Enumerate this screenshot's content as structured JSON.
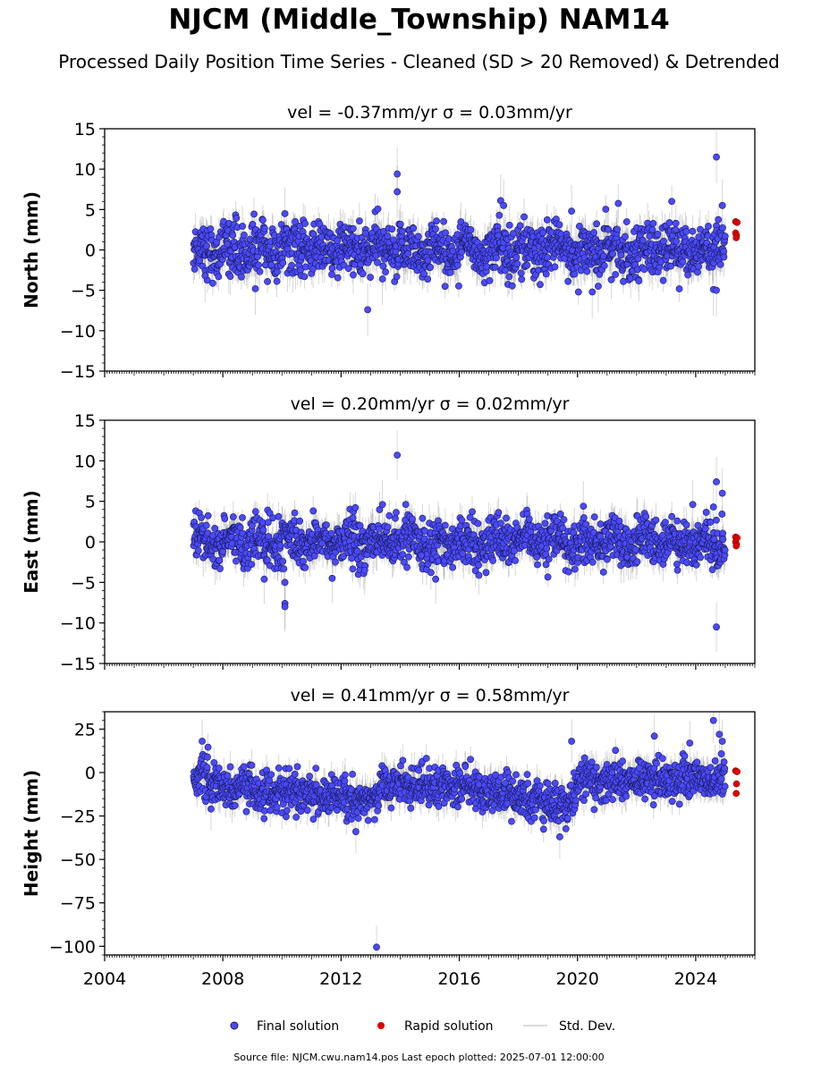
{
  "title": "NJCM (Middle_Township) NAM14",
  "subtitle": "Processed Daily Position Time Series - Cleaned (SD > 20 Removed) & Detrended",
  "footer": "Source file: NJCM.cwu.nam14.pos  Last epoch plotted: 2025-07-01 12:00:00",
  "legend": {
    "final_label": "Final solution",
    "rapid_label": "Rapid solution",
    "std_label": "Std. Dev."
  },
  "colors": {
    "final": "#4a4aff",
    "final_edge": "#1a1a55",
    "rapid": "#e00000",
    "std": "#8c8c8c"
  },
  "chart_data": [
    {
      "type": "scatter",
      "panel": "north",
      "title": "vel = -0.37mm/yr   σ = 0.03mm/yr",
      "ylabel": "North (mm)",
      "xlabel": "",
      "xlim": [
        2004,
        2026
      ],
      "ylim": [
        -15,
        15
      ],
      "yticks": [
        15,
        10,
        5,
        0,
        -5,
        -10,
        -15
      ],
      "xticks": [
        2004,
        2008,
        2012,
        2016,
        2020,
        2024
      ],
      "show_xtick_labels": false,
      "grid": false,
      "series": [
        {
          "name": "Final solution",
          "kind": "final",
          "time_span": [
            2007.0,
            2025.0
          ],
          "noise_sd": 1.6,
          "err": 1.8,
          "points": [
            [
              2012.9,
              -7.4
            ],
            [
              2013.9,
              9.4
            ],
            [
              2013.9,
              7.2
            ],
            [
              2009.1,
              -4.8
            ],
            [
              2024.7,
              11.5
            ],
            [
              2024.9,
              5.5
            ],
            [
              2024.6,
              -4.9
            ],
            [
              2024.7,
              -5.0
            ],
            [
              2017.4,
              6.1
            ],
            [
              2017.5,
              5.5
            ],
            [
              2010.1,
              4.5
            ],
            [
              2020.5,
              -5.2
            ],
            [
              2007.4,
              -3.2
            ],
            [
              2013.4,
              -3.6
            ],
            [
              2019.8,
              4.8
            ],
            [
              2020.7,
              -4.5
            ]
          ]
        },
        {
          "name": "Rapid solution",
          "kind": "rapid",
          "points": [
            [
              2025.35,
              3.5
            ],
            [
              2025.4,
              3.4
            ],
            [
              2025.35,
              2.1
            ],
            [
              2025.38,
              1.8
            ],
            [
              2025.37,
              1.5
            ]
          ]
        }
      ]
    },
    {
      "type": "scatter",
      "panel": "east",
      "title": "vel = 0.20mm/yr   σ = 0.02mm/yr",
      "ylabel": "East (mm)",
      "xlabel": "",
      "xlim": [
        2004,
        2026
      ],
      "ylim": [
        -15,
        15
      ],
      "yticks": [
        15,
        10,
        5,
        0,
        -5,
        -10,
        -15
      ],
      "xticks": [
        2004,
        2008,
        2012,
        2016,
        2020,
        2024
      ],
      "show_xtick_labels": false,
      "grid": false,
      "series": [
        {
          "name": "Final solution",
          "kind": "final",
          "time_span": [
            2007.0,
            2025.0
          ],
          "noise_sd": 1.4,
          "err": 1.7,
          "points": [
            [
              2013.9,
              10.7
            ],
            [
              2010.1,
              -7.6
            ],
            [
              2010.1,
              -8.0
            ],
            [
              2010.1,
              -5.0
            ],
            [
              2009.4,
              -4.6
            ],
            [
              2024.7,
              -10.5
            ],
            [
              2024.7,
              7.4
            ],
            [
              2024.9,
              6.0
            ],
            [
              2024.6,
              4.3
            ],
            [
              2013.4,
              4.6
            ],
            [
              2020.2,
              4.4
            ],
            [
              2012.8,
              -3.5
            ],
            [
              2015.2,
              -4.6
            ],
            [
              2011.7,
              -4.5
            ],
            [
              2023.9,
              4.6
            ]
          ]
        },
        {
          "name": "Rapid solution",
          "kind": "rapid",
          "points": [
            [
              2025.35,
              0.6
            ],
            [
              2025.4,
              0.5
            ],
            [
              2025.35,
              0.0
            ],
            [
              2025.38,
              -0.3
            ],
            [
              2025.37,
              -0.5
            ]
          ]
        }
      ]
    },
    {
      "type": "scatter",
      "panel": "height",
      "title": "vel = 0.41mm/yr   σ = 0.58mm/yr",
      "ylabel": "Height (mm)",
      "xlabel": "",
      "xlim": [
        2004,
        2026
      ],
      "ylim": [
        -105,
        35
      ],
      "yticks": [
        25,
        0,
        -25,
        -50,
        -75,
        -100
      ],
      "xticks": [
        2004,
        2008,
        2012,
        2016,
        2020,
        2024
      ],
      "show_xtick_labels": true,
      "grid": false,
      "series": [
        {
          "name": "Final solution",
          "kind": "final",
          "time_span": [
            2007.0,
            2025.0
          ],
          "noise_sd": 5.5,
          "err": 7.0,
          "points": [
            [
              2013.2,
              -100.5
            ],
            [
              2024.6,
              30.0
            ],
            [
              2024.8,
              22.0
            ],
            [
              2024.9,
              18.0
            ],
            [
              2022.6,
              21.0
            ],
            [
              2019.8,
              18.0
            ],
            [
              2007.3,
              18.0
            ],
            [
              2019.4,
              -37.0
            ],
            [
              2012.5,
              -34.0
            ],
            [
              2007.6,
              -21.0
            ],
            [
              2023.8,
              17.0
            ]
          ]
        },
        {
          "name": "Rapid solution",
          "kind": "rapid",
          "points": [
            [
              2025.35,
              1.0
            ],
            [
              2025.4,
              0.5
            ],
            [
              2025.38,
              -6.5
            ],
            [
              2025.37,
              -12.0
            ]
          ]
        }
      ]
    }
  ]
}
